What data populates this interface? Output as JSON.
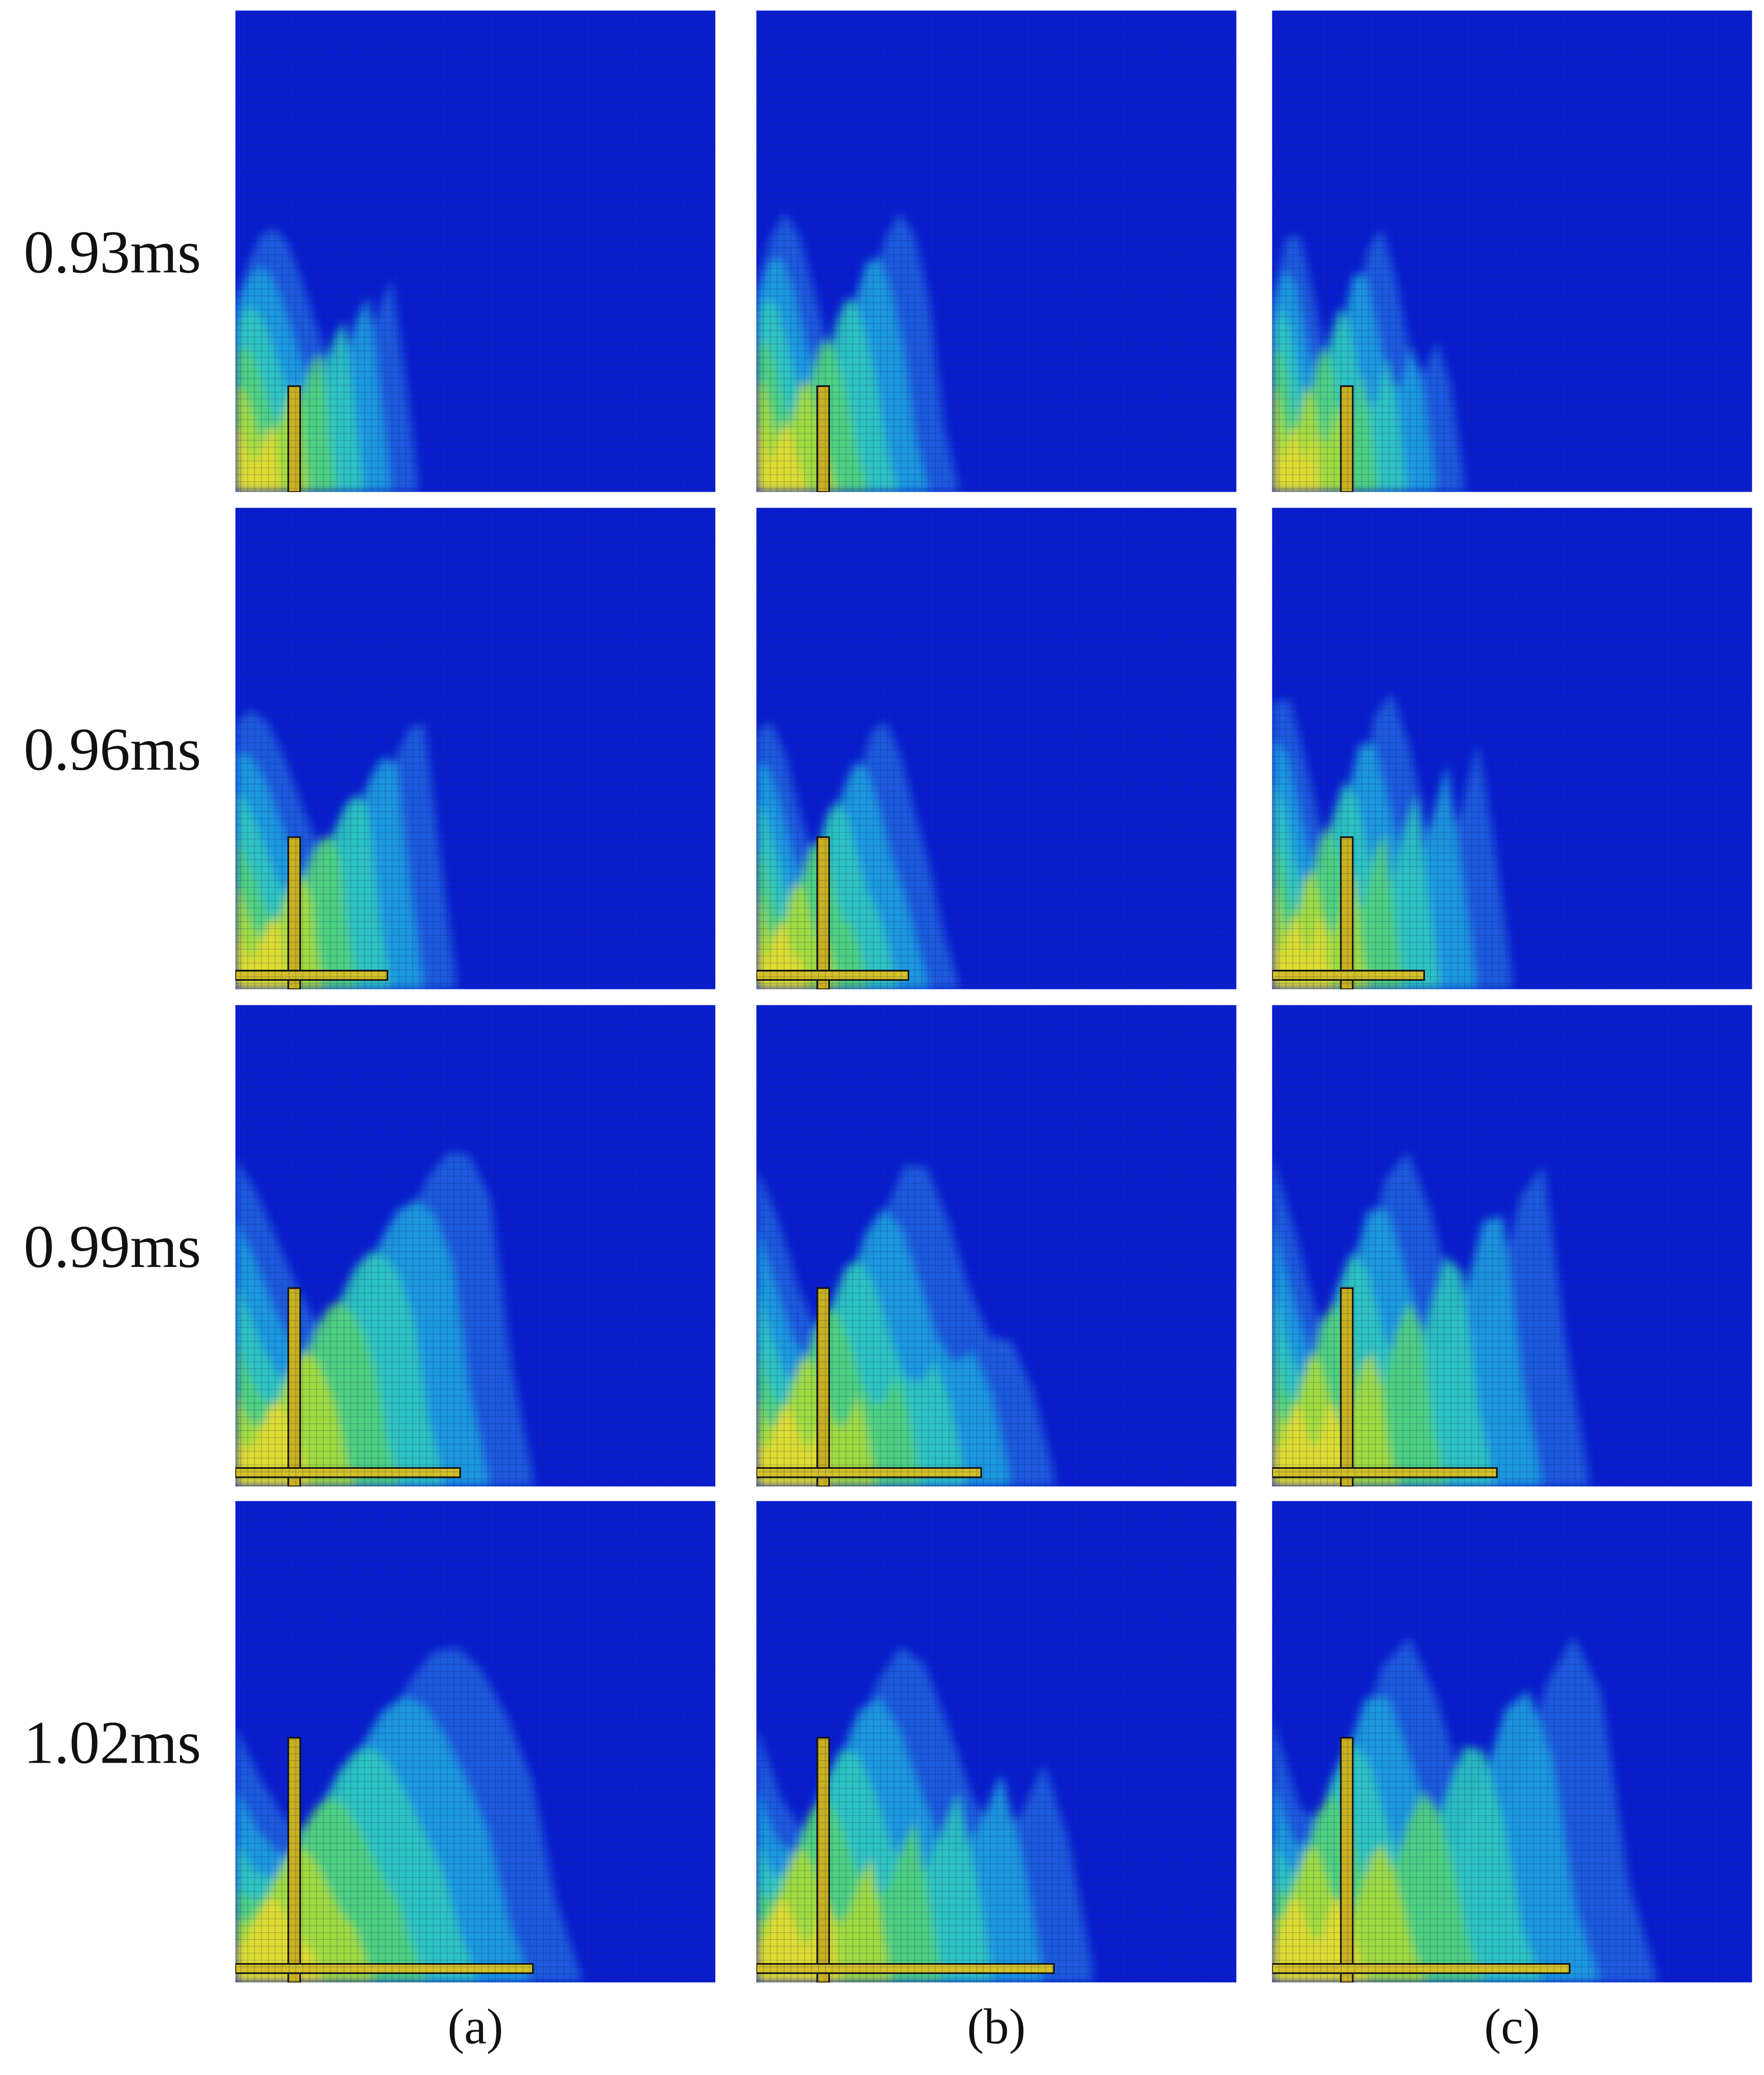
{
  "row_labels": [
    "0.93ms",
    "0.96ms",
    "0.99ms",
    "1.02ms"
  ],
  "column_labels": [
    "(a)",
    "(b)",
    "(c)"
  ]
}
